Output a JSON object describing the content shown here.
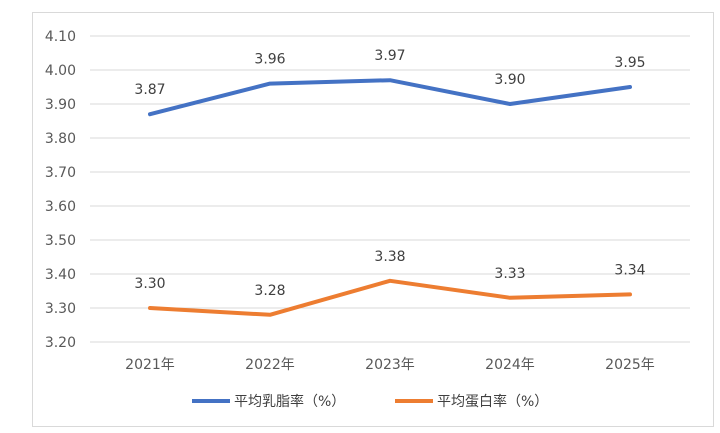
{
  "chart_data": {
    "type": "line",
    "categories": [
      "2021年",
      "2022年",
      "2023年",
      "2024年",
      "2025年"
    ],
    "series": [
      {
        "name": "平均乳脂率（%）",
        "values": [
          3.87,
          3.96,
          3.97,
          3.9,
          3.95
        ],
        "color": "#4472c4",
        "labels": [
          "3.87",
          "3.96",
          "3.97",
          "3.90",
          "3.95"
        ]
      },
      {
        "name": "平均蛋白率（%）",
        "values": [
          3.3,
          3.28,
          3.38,
          3.33,
          3.34
        ],
        "color": "#ed7d31",
        "labels": [
          "3.30",
          "3.28",
          "3.38",
          "3.33",
          "3.34"
        ]
      }
    ],
    "ylim": [
      3.2,
      4.1
    ],
    "yticks": [
      "4.10",
      "4.00",
      "3.90",
      "3.80",
      "3.70",
      "3.60",
      "3.50",
      "3.40",
      "3.30",
      "3.20"
    ],
    "grid": true,
    "legend": "bottom"
  }
}
